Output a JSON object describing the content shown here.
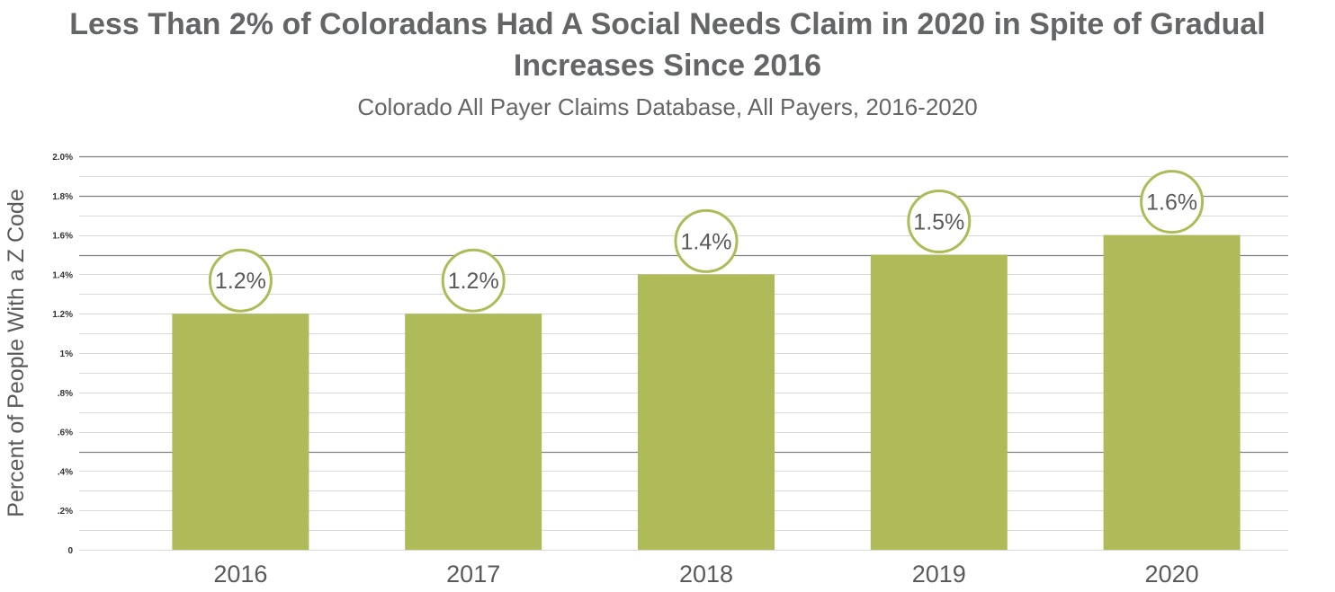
{
  "chart_data": {
    "type": "bar",
    "title": "Less Than 2% of Coloradans Had A Social Needs Claim in 2020 in Spite of Gradual Increases Since 2016",
    "subtitle": "Colorado All Payer Claims Database, All Payers, 2016-2020",
    "ylabel": "Percent of People With a Z Code",
    "xlabel": "",
    "categories": [
      "2016",
      "2017",
      "2018",
      "2019",
      "2020"
    ],
    "values": [
      1.2,
      1.2,
      1.4,
      1.5,
      1.6
    ],
    "data_labels": [
      "1.2%",
      "1.2%",
      "1.4%",
      "1.5%",
      "1.6%"
    ],
    "ylim": [
      0,
      2.0
    ],
    "yticks": [
      0,
      0.2,
      0.4,
      0.6,
      0.8,
      1.0,
      1.2,
      1.4,
      1.6,
      1.8,
      2.0
    ],
    "ytick_labels": [
      "0",
      ".2%",
      ".4%",
      ".6%",
      ".8%",
      "1%",
      "1.2%",
      "1.4%",
      "1.6%",
      "1.8%",
      "2.0%"
    ],
    "grid": true,
    "legend": "none",
    "colors": {
      "bar": "#afbb58",
      "label_circle": "#afbb58",
      "text": "#646566",
      "grid_major": "#7f7f7f",
      "grid_minor": "#d9d9d9"
    }
  }
}
